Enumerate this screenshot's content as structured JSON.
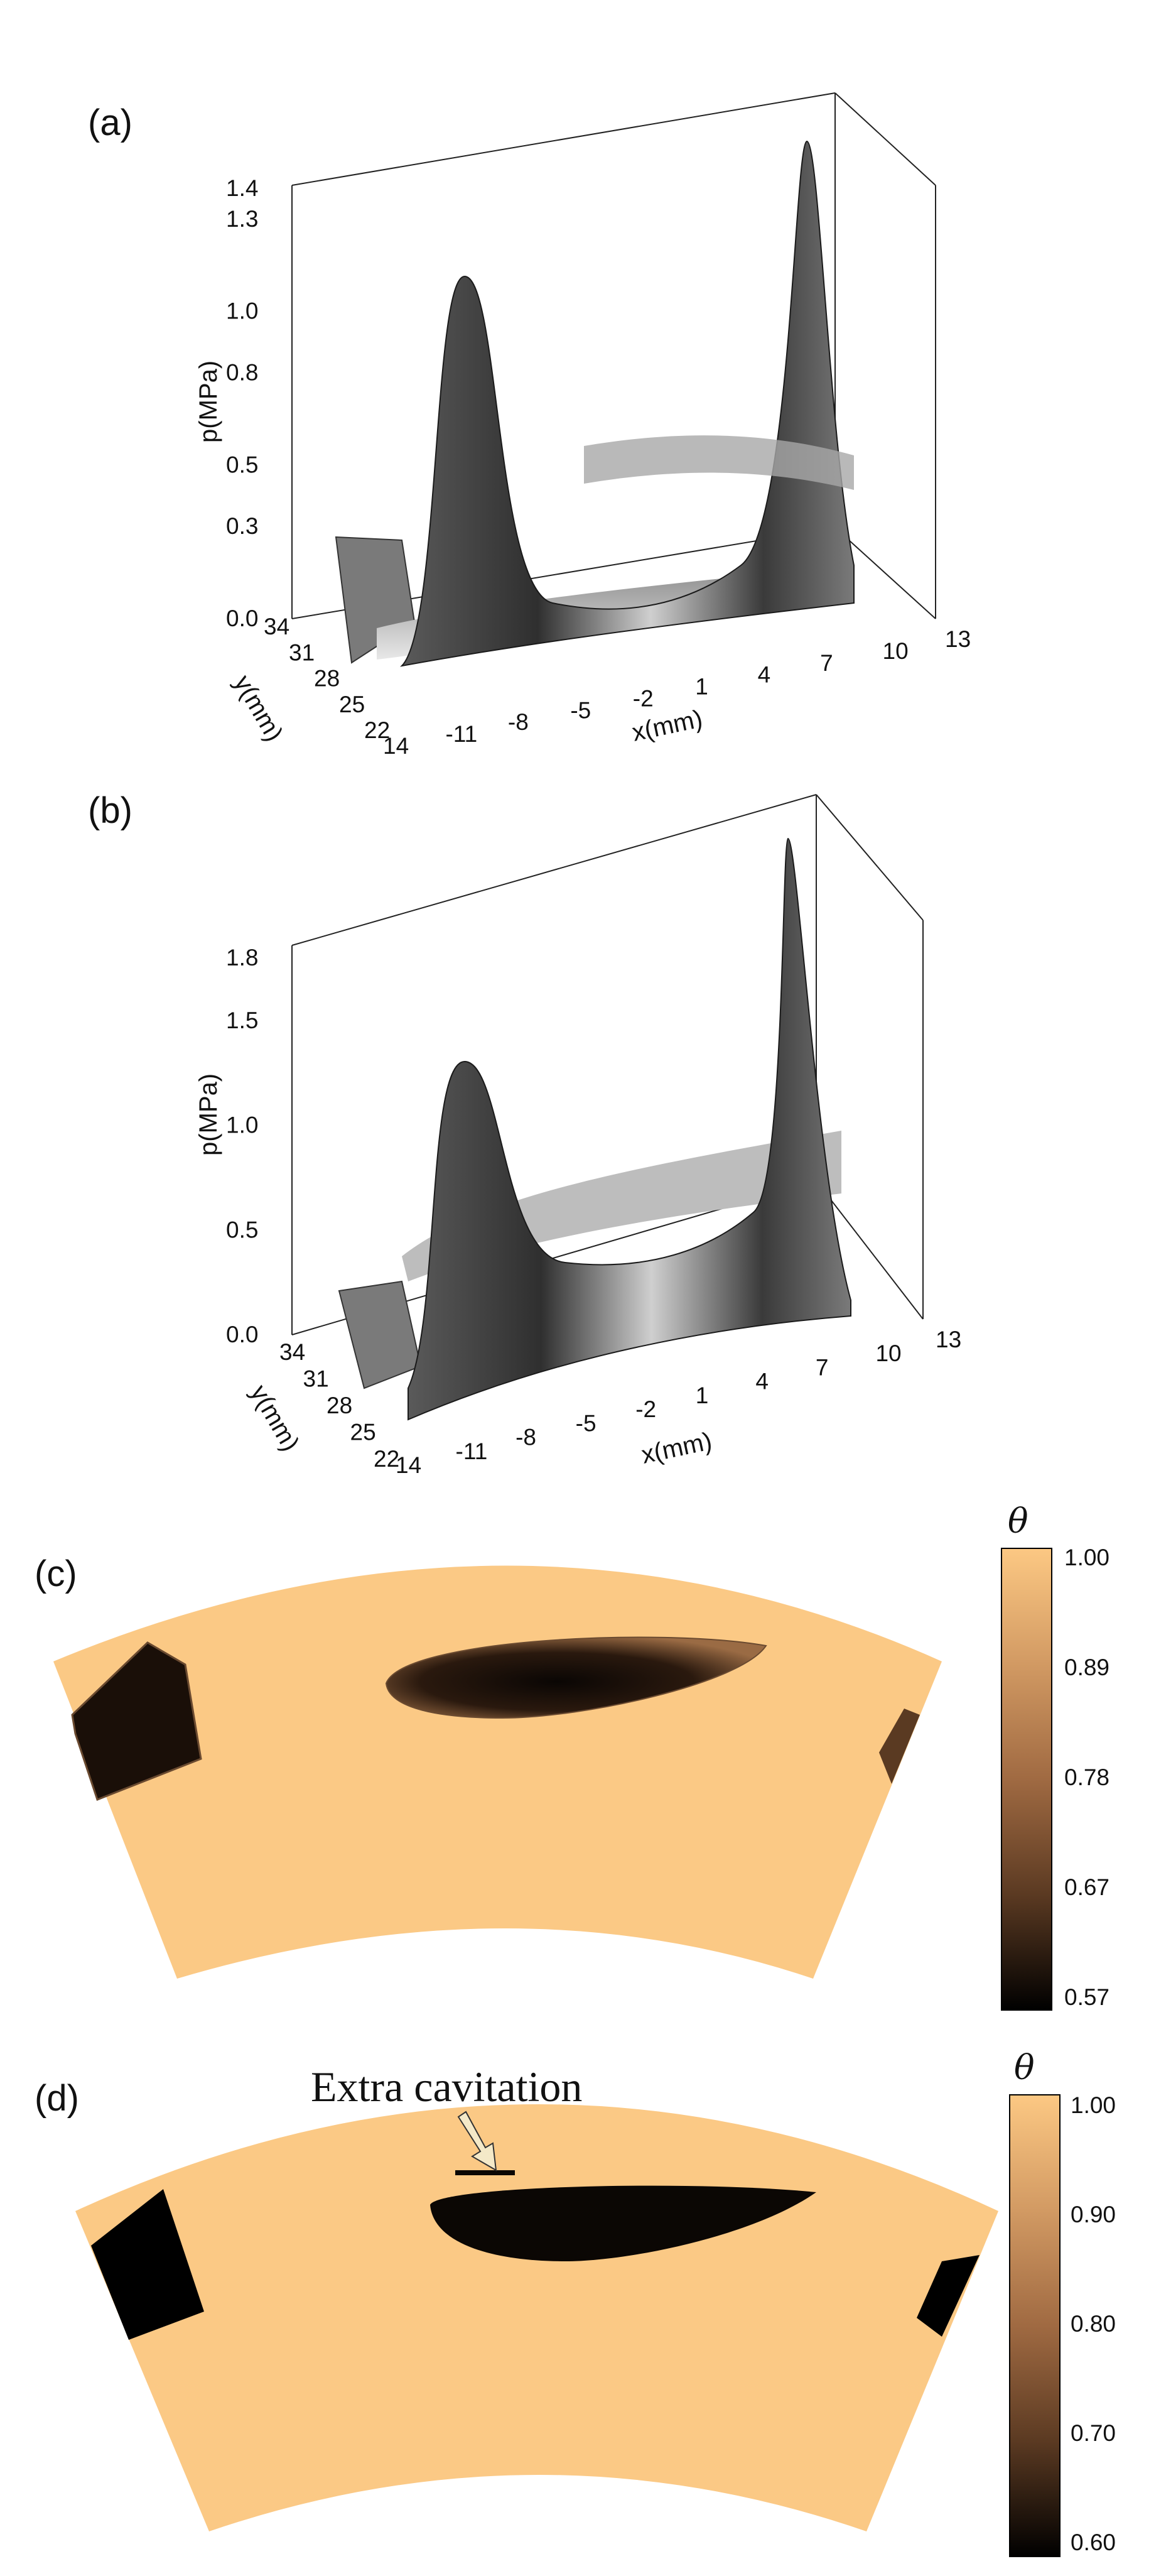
{
  "chart_data": [
    {
      "type": "surface3d",
      "panel": "(a)",
      "zlabel": "p(MPa)",
      "ylabel": "y(mm)",
      "xlabel": "x(mm)",
      "z_ticks": [
        "0.0",
        "0.3",
        "0.5",
        "0.8",
        "1.0",
        "1.3",
        "1.4"
      ],
      "y_ticks": [
        "34",
        "31",
        "28",
        "25",
        "22"
      ],
      "x_ticks": [
        "14",
        "-11",
        "-8",
        "-5",
        "-2",
        "1",
        "4",
        "7",
        "10",
        "13"
      ],
      "zlim": [
        0.0,
        1.4
      ],
      "peaks": [
        {
          "x": -9.5,
          "p": 1.15
        },
        {
          "x": 8,
          "p": 1.4
        }
      ]
    },
    {
      "type": "surface3d",
      "panel": "(b)",
      "zlabel": "p(MPa)",
      "ylabel": "y(mm)",
      "xlabel": "x(mm)",
      "z_ticks": [
        "0.0",
        "0.5",
        "1.0",
        "1.5",
        "1.8"
      ],
      "y_ticks": [
        "34",
        "31",
        "28",
        "25",
        "22"
      ],
      "x_ticks": [
        "14",
        "-11",
        "-8",
        "-5",
        "-2",
        "1",
        "4",
        "7",
        "10",
        "13"
      ],
      "zlim": [
        0.0,
        1.8
      ],
      "peaks": [
        {
          "x": -9.5,
          "p": 1.3
        },
        {
          "x": 8,
          "p": 1.8
        }
      ]
    },
    {
      "type": "heatmap",
      "panel": "(c)",
      "colorbar_label": "θ",
      "colorbar_ticks": [
        "1.00",
        "0.89",
        "0.78",
        "0.67",
        "0.57"
      ],
      "range": [
        0.57,
        1.0
      ]
    },
    {
      "type": "heatmap",
      "panel": "(d)",
      "colorbar_label": "θ",
      "colorbar_ticks": [
        "1.00",
        "0.90",
        "0.80",
        "0.70",
        "0.60"
      ],
      "range": [
        0.6,
        1.0
      ],
      "annotation": "Extra cavitation"
    }
  ],
  "colors": {
    "full_film": "#fbc985",
    "cavitation": "#0b0704",
    "surface_dark": "#2b2b2b",
    "surface_light": "#dcdcdc"
  }
}
